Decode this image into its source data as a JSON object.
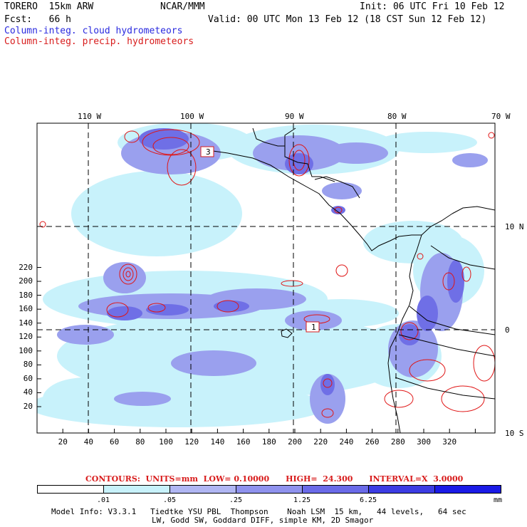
{
  "header": {
    "model": "TORERO  15km ARW",
    "center": "NCAR/MMM",
    "init": "Init: 06 UTC Fri 10 Feb 12",
    "fcst": "Fcst:   66 h",
    "valid": "Valid: 00 UTC Mon 13 Feb 12 (18 CST Sun 12 Feb 12)",
    "field_cloud": "Column-integ. cloud hydrometeors",
    "field_precip": "Column-integ. precip. hydrometeors"
  },
  "map": {
    "lon_labels": [
      "110 W",
      "100 W",
      "90 W",
      "80 W",
      "70 W"
    ],
    "lat_labels": [
      "10 N",
      "0",
      "10 S"
    ],
    "x_ticks": [
      "20",
      "40",
      "60",
      "80",
      "100",
      "120",
      "140",
      "160",
      "180",
      "200",
      "220",
      "240",
      "260",
      "280",
      "300",
      "320"
    ],
    "y_ticks": [
      "20",
      "40",
      "60",
      "80",
      "100",
      "120",
      "140",
      "160",
      "180",
      "200",
      "220"
    ],
    "maxima": [
      "3",
      "1"
    ],
    "colors": {
      "cloud_light": "#c8f2fb",
      "cloud_mid": "#9aa0ee",
      "cloud_dark": "#6f6fe6",
      "precip": "#e01515",
      "border": "#000000"
    }
  },
  "legend": {
    "contours": "CONTOURS:  UNITS=mm  LOW= 0.10000      HIGH=  24.300      INTERVAL=X  3.0000",
    "labels": [
      ".01",
      ".05",
      ".25",
      "1.25",
      "6.25"
    ],
    "units": "mm",
    "colors": [
      "#ffffff",
      "#c8f2fb",
      "#b0b6f3",
      "#8f92ee",
      "#6a6ae8",
      "#3c3ce3",
      "#1a1ae6"
    ]
  },
  "footer": {
    "line1": "Model Info: V3.3.1   Tiedtke YSU PBL  Thompson    Noah LSM  15 km,   44 levels,   64 sec",
    "line2": "LW, Godd SW, Goddard DIFF, simple KM, 2D Smagor"
  }
}
